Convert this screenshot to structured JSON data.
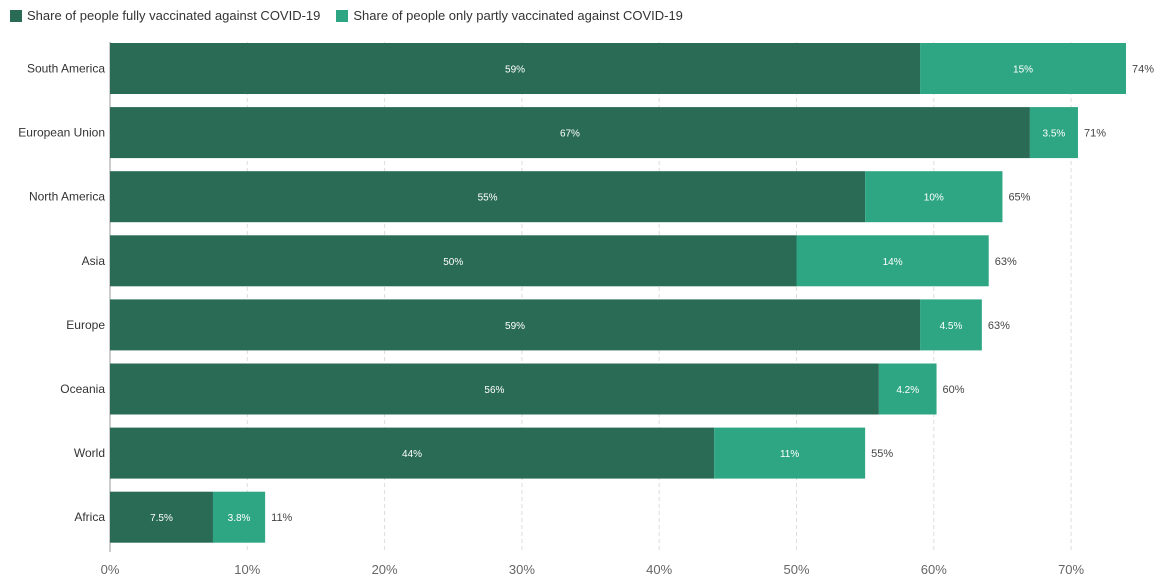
{
  "legend": {
    "full_label": "Share of people fully vaccinated against COVID-19",
    "partial_label": "Share of people only partly vaccinated against COVID-19"
  },
  "colors": {
    "full": "#2a6b55",
    "partial": "#2fa683",
    "grid": "#dddddd"
  },
  "chart_data": {
    "type": "bar",
    "orientation": "horizontal",
    "stacked": true,
    "categories": [
      "South America",
      "European Union",
      "North America",
      "Asia",
      "Europe",
      "Oceania",
      "World",
      "Africa"
    ],
    "series": [
      {
        "name": "Share of people fully vaccinated against COVID-19",
        "values": [
          59,
          67,
          55,
          50,
          59,
          56,
          44,
          7.5
        ],
        "labels": [
          "59%",
          "67%",
          "55%",
          "50%",
          "59%",
          "56%",
          "44%",
          "7.5%"
        ]
      },
      {
        "name": "Share of people only partly vaccinated against COVID-19",
        "values": [
          15,
          3.5,
          10,
          14,
          4.5,
          4.2,
          11,
          3.8
        ],
        "labels": [
          "15%",
          "3.5%",
          "10%",
          "14%",
          "4.5%",
          "4.2%",
          "11%",
          "3.8%"
        ]
      }
    ],
    "totals": [
      "74%",
      "71%",
      "65%",
      "63%",
      "63%",
      "60%",
      "55%",
      "11%"
    ],
    "xticks": [
      "0%",
      "10%",
      "20%",
      "30%",
      "40%",
      "50%",
      "60%",
      "70%"
    ],
    "xlim": [
      0,
      74
    ],
    "grid": true,
    "legend_position": "top-left"
  }
}
